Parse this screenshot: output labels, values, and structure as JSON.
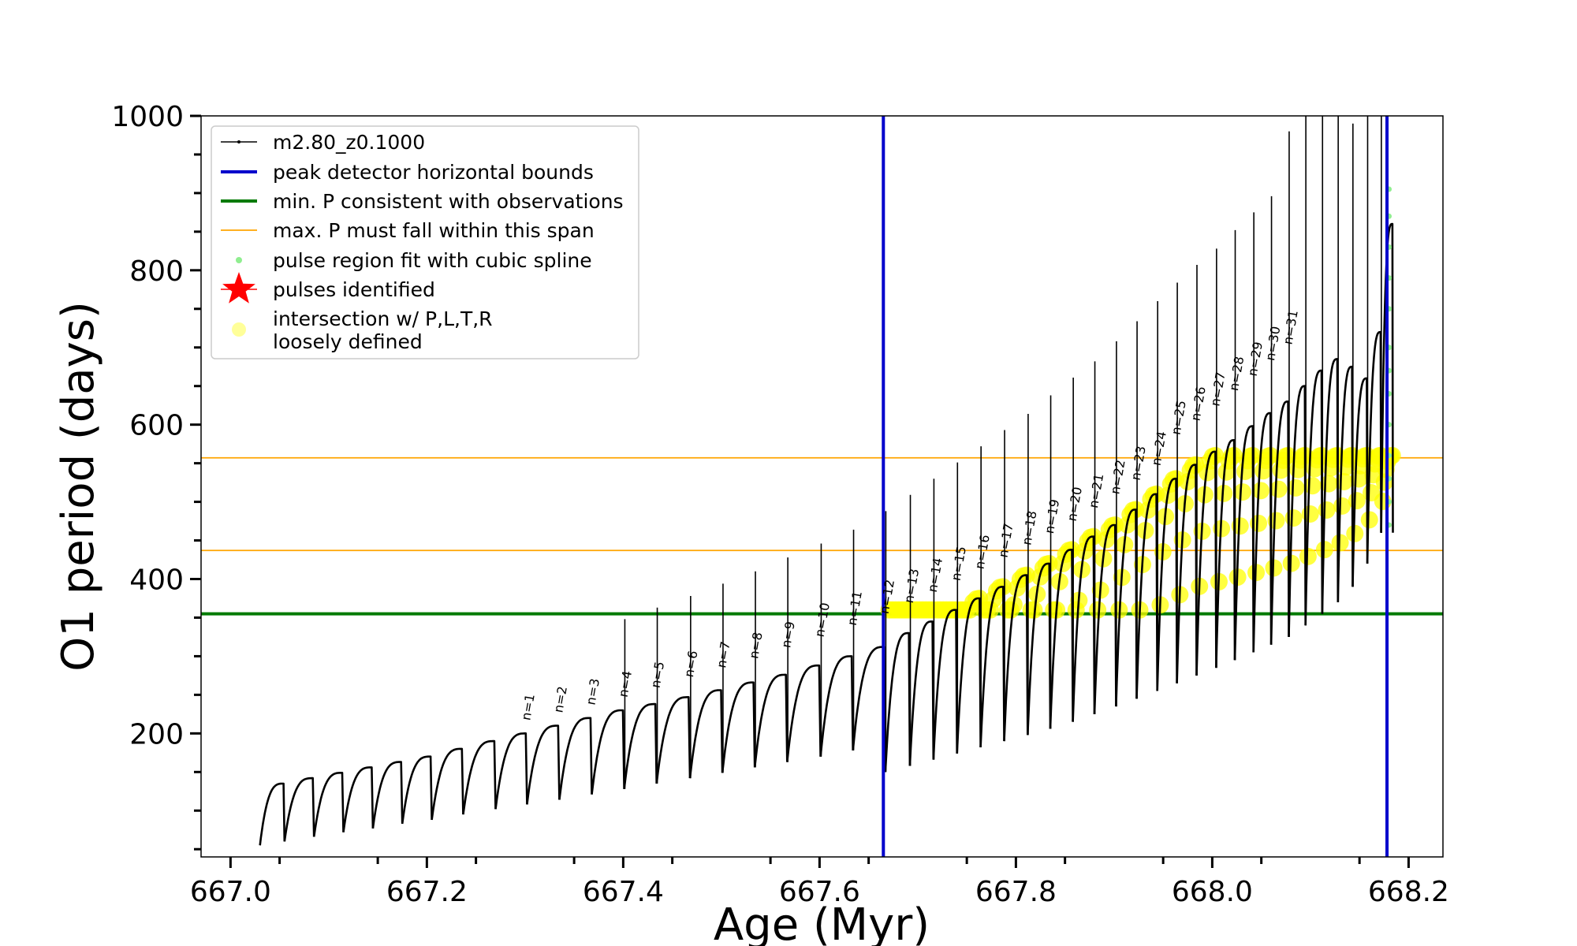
{
  "chart_data": {
    "type": "line",
    "xlabel": "Age (Myr)",
    "ylabel": "O1 period (days)",
    "xlim": [
      666.97,
      668.235
    ],
    "ylim": [
      40,
      1000
    ],
    "x_ticks": [
      667.0,
      667.2,
      667.4,
      667.6,
      667.8,
      668.0,
      668.2
    ],
    "x_tick_labels": [
      "667.0",
      "667.2",
      "667.4",
      "667.6",
      "667.8",
      "668.0",
      "668.2"
    ],
    "y_ticks": [
      200,
      400,
      600,
      800,
      1000
    ],
    "y_tick_labels": [
      "200",
      "400",
      "600",
      "800",
      "1000"
    ],
    "grid": false,
    "legend_position": "top-left",
    "legend": [
      {
        "label": "m2.80_z0.1000",
        "color": "#000000",
        "kind": "line-marker"
      },
      {
        "label": "peak detector horizontal bounds",
        "color": "#0000cc",
        "kind": "line"
      },
      {
        "label": "min. P consistent with observations",
        "color": "#007a00",
        "kind": "line"
      },
      {
        "label": "max. P must fall within this span",
        "color": "#ffa500",
        "kind": "thin-line"
      },
      {
        "label": "pulse region fit with cubic spline",
        "color": "#90ee90",
        "kind": "dot"
      },
      {
        "label": "pulses identified",
        "color": "#ff0000",
        "kind": "star"
      },
      {
        "label": "intersection w/ P,L,T,R\nloosely defined",
        "color": "#ffff99",
        "kind": "circle"
      }
    ],
    "vertical_lines": {
      "color": "#0000cc",
      "x": [
        667.665,
        668.178
      ]
    },
    "min_period_line": {
      "color": "#007a00",
      "y": 355
    },
    "max_period_span": {
      "color": "#ffa500",
      "y": [
        437,
        557
      ]
    },
    "series": [
      {
        "name": "m2.80_z0.1000",
        "color": "#000000",
        "pulse_start_ages": [
          667.03,
          667.055,
          667.085,
          667.115,
          667.145,
          667.175,
          667.205,
          667.237,
          667.27,
          667.302,
          667.335,
          667.368,
          667.401,
          667.434,
          667.468,
          667.501,
          667.534,
          667.567,
          667.601,
          667.634,
          667.667,
          667.692,
          667.716,
          667.74,
          667.764,
          667.788,
          667.812,
          667.835,
          667.858,
          667.88,
          667.902,
          667.923,
          667.944,
          667.964,
          667.984,
          668.004,
          668.023,
          668.042,
          668.06,
          668.078,
          668.095,
          668.112,
          668.128,
          668.143,
          668.158,
          668.172
        ],
        "pulse_max_periods": [
          135,
          142,
          149,
          156,
          163,
          170,
          180,
          190,
          200,
          210,
          220,
          230,
          238,
          247,
          256,
          266,
          276,
          288,
          300,
          312,
          330,
          345,
          360,
          375,
          390,
          405,
          420,
          438,
          455,
          470,
          490,
          510,
          530,
          548,
          565,
          580,
          598,
          615,
          630,
          650,
          670,
          685,
          675,
          660,
          720,
          860
        ],
        "pulse_min_periods": [
          55,
          60,
          66,
          72,
          77,
          83,
          88,
          95,
          102,
          108,
          114,
          121,
          128,
          135,
          142,
          149,
          156,
          163,
          170,
          178,
          150,
          158,
          166,
          174,
          182,
          190,
          198,
          206,
          215,
          225,
          235,
          245,
          255,
          265,
          275,
          285,
          295,
          305,
          315,
          325,
          340,
          355,
          370,
          390,
          420,
          460
        ]
      }
    ],
    "pulse_labels": [
      {
        "text": "n=1",
        "x": 667.305,
        "y": 210
      },
      {
        "text": "n=2",
        "x": 667.338,
        "y": 220
      },
      {
        "text": "n=3",
        "x": 667.371,
        "y": 230
      },
      {
        "text": "n=4",
        "x": 667.404,
        "y": 240
      },
      {
        "text": "n=5",
        "x": 667.437,
        "y": 252
      },
      {
        "text": "n=6",
        "x": 667.471,
        "y": 266
      },
      {
        "text": "n=7",
        "x": 667.504,
        "y": 278
      },
      {
        "text": "n=8",
        "x": 667.537,
        "y": 290
      },
      {
        "text": "n=9",
        "x": 667.57,
        "y": 304
      },
      {
        "text": "n=10",
        "x": 667.604,
        "y": 318
      },
      {
        "text": "n=11",
        "x": 667.637,
        "y": 333
      },
      {
        "text": "n=12",
        "x": 667.67,
        "y": 348
      },
      {
        "text": "n=13",
        "x": 667.695,
        "y": 362
      },
      {
        "text": "n=14",
        "x": 667.719,
        "y": 376
      },
      {
        "text": "n=15",
        "x": 667.743,
        "y": 391
      },
      {
        "text": "n=16",
        "x": 667.767,
        "y": 406
      },
      {
        "text": "n=17",
        "x": 667.791,
        "y": 421
      },
      {
        "text": "n=18",
        "x": 667.815,
        "y": 437
      },
      {
        "text": "n=19",
        "x": 667.838,
        "y": 452
      },
      {
        "text": "n=20",
        "x": 667.861,
        "y": 468
      },
      {
        "text": "n=21",
        "x": 667.883,
        "y": 485
      },
      {
        "text": "n=22",
        "x": 667.905,
        "y": 503
      },
      {
        "text": "n=23",
        "x": 667.926,
        "y": 521
      },
      {
        "text": "n=24",
        "x": 667.947,
        "y": 540
      },
      {
        "text": "n=25",
        "x": 667.967,
        "y": 580
      },
      {
        "text": "n=26",
        "x": 667.987,
        "y": 598
      },
      {
        "text": "n=27",
        "x": 668.007,
        "y": 617
      },
      {
        "text": "n=28",
        "x": 668.026,
        "y": 637
      },
      {
        "text": "n=29",
        "x": 668.045,
        "y": 656
      },
      {
        "text": "n=30",
        "x": 668.063,
        "y": 676
      },
      {
        "text": "n=31",
        "x": 668.081,
        "y": 697
      }
    ]
  }
}
